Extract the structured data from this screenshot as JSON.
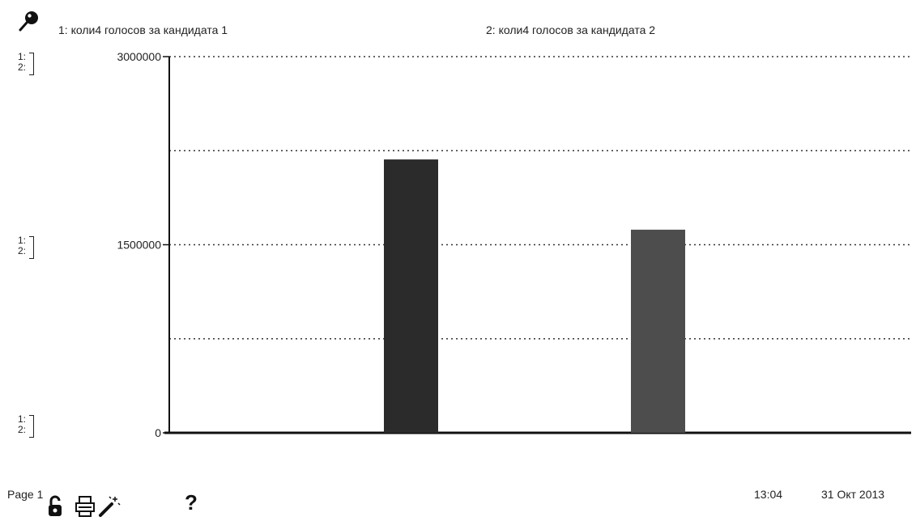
{
  "legend": {
    "icon": "magnifier-icon",
    "series1_label": "1: коли4 голосов за кандидата 1",
    "series2_label": "2: коли4 голосов за кандидата 2"
  },
  "scale_markers": {
    "line1": "1:",
    "line2": "2:"
  },
  "chart_data": {
    "type": "bar",
    "title": "",
    "xlabel": "",
    "ylabel": "",
    "ylim": [
      0,
      3000000
    ],
    "yticks": [
      0,
      1500000,
      3000000
    ],
    "ytick_labels": [
      "0",
      "1500000",
      "3000000"
    ],
    "grid": true,
    "series": [
      {
        "name": "1: коли4 голосов за кандидата 1",
        "values": [
          2180000
        ],
        "color": "#2b2b2b"
      },
      {
        "name": "2: коли4 голосов за кандидата 2",
        "values": [
          1620000
        ],
        "color": "#4d4d4d"
      }
    ]
  },
  "footer": {
    "page": "Page 1",
    "time": "13:04",
    "date": "31 Окт 2013"
  },
  "toolbar": {
    "lock_icon": "lock-icon",
    "print_icon": "printer-icon",
    "magic_icon": "magic-wand-icon",
    "help_icon": "help-icon",
    "help_glyph": "?"
  }
}
